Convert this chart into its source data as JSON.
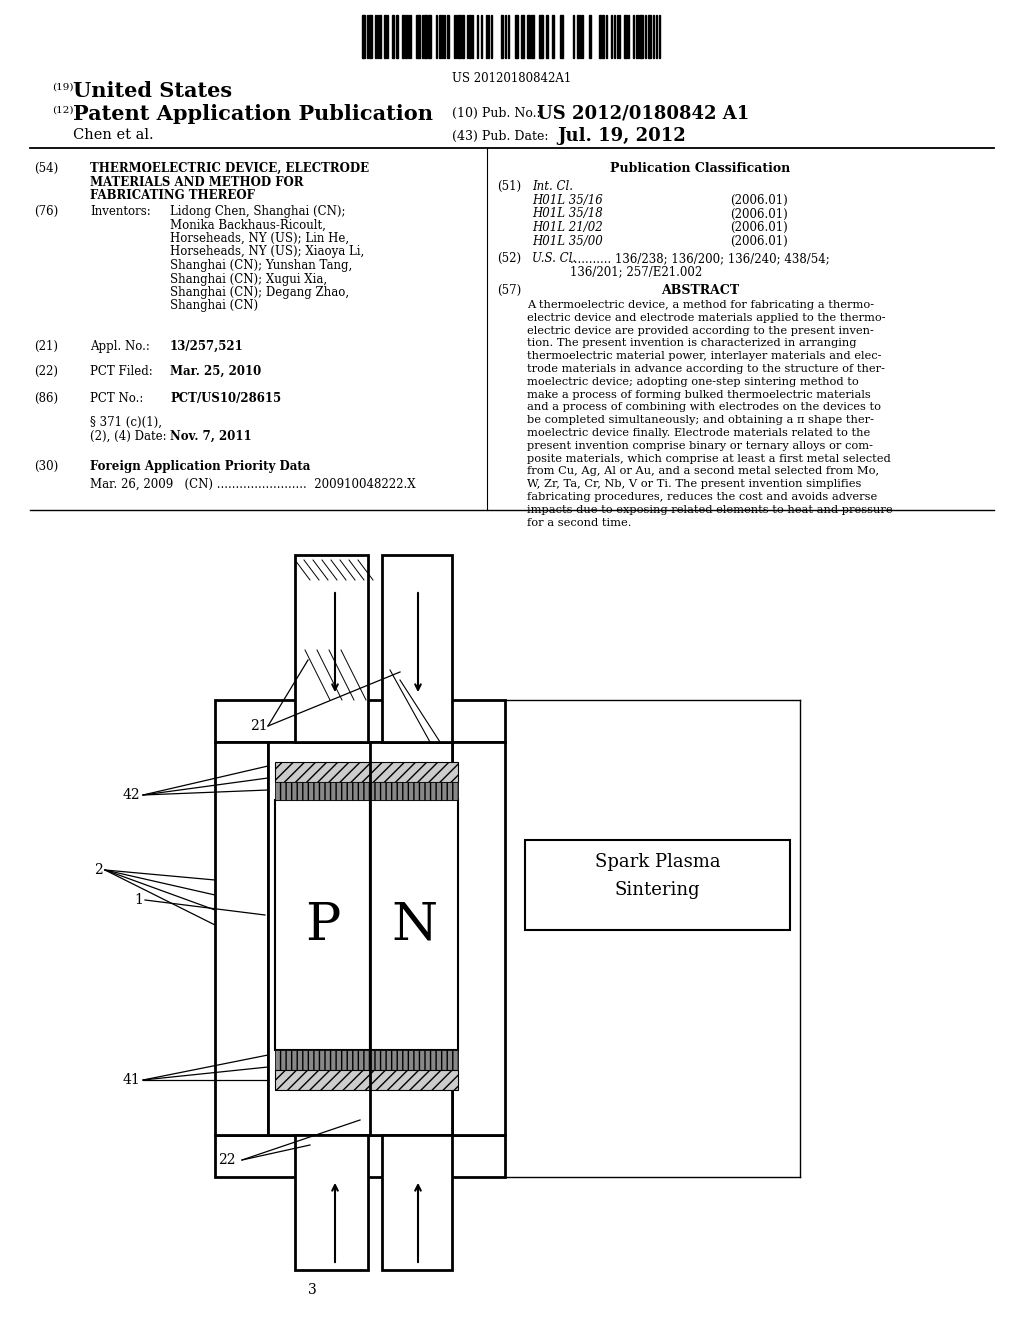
{
  "background_color": "#ffffff",
  "barcode_text": "US 20120180842A1",
  "header_19_text": "United States",
  "header_12_text": "Patent Application Publication",
  "header_10_label": "(10) Pub. No.:",
  "header_10_value": "US 2012/0180842 A1",
  "header_author": "Chen et al.",
  "header_43_label": "(43) Pub. Date:",
  "header_43_value": "Jul. 19, 2012",
  "field54_title_lines": [
    "THERMOELECTRIC DEVICE, ELECTRODE",
    "MATERIALS AND METHOD FOR",
    "FABRICATING THEREOF"
  ],
  "field76_inv_lines": [
    "Lidong Chen, Shanghai (CN);",
    "Monika Backhaus-Ricoult,",
    "Horseheads, NY (US); Lin He,",
    "Horseheads, NY (US); Xiaoya Li,",
    "Shanghai (CN); Yunshan Tang,",
    "Shanghai (CN); Xugui Xia,",
    "Shanghai (CN); Degang Zhao,",
    "Shanghai (CN)"
  ],
  "field21_value": "13/257,521",
  "field22_value": "Mar. 25, 2010",
  "field86_value": "PCT/US10/28615",
  "field86b_value": "Nov. 7, 2011",
  "field30_value": "Mar. 26, 2009   (CN) ........................  200910048222.X",
  "pub_class_title": "Publication Classification",
  "field51_lines": [
    [
      "H01L 35/16",
      "(2006.01)"
    ],
    [
      "H01L 35/18",
      "(2006.01)"
    ],
    [
      "H01L 21/02",
      "(2006.01)"
    ],
    [
      "H01L 35/00",
      "(2006.01)"
    ]
  ],
  "field52_lines": [
    "........... 136/238; 136/200; 136/240; 438/54;",
    "136/201; 257/E21.002"
  ],
  "abstract_lines": [
    "A thermoelectric device, a method for fabricating a thermo-",
    "electric device and electrode materials applied to the thermo-",
    "electric device are provided according to the present inven-",
    "tion. The present invention is characterized in arranging",
    "thermoelectric material power, interlayer materials and elec-",
    "trode materials in advance according to the structure of ther-",
    "moelectric device; adopting one-step sintering method to",
    "make a process of forming bulked thermoelectric materials",
    "and a process of combining with electrodes on the devices to",
    "be completed simultaneously; and obtaining a π shape ther-",
    "moelectric device finally. Electrode materials related to the",
    "present invention comprise binary or ternary alloys or com-",
    "posite materials, which comprise at least a first metal selected",
    "from Cu, Ag, Al or Au, and a second metal selected from Mo,",
    "W, Zr, Ta, Cr, Nb, V or Ti. The present invention simplifies",
    "fabricating procedures, reduces the cost and avoids adverse",
    "impacts due to exposing related elements to heat and pressure",
    "for a second time."
  ]
}
